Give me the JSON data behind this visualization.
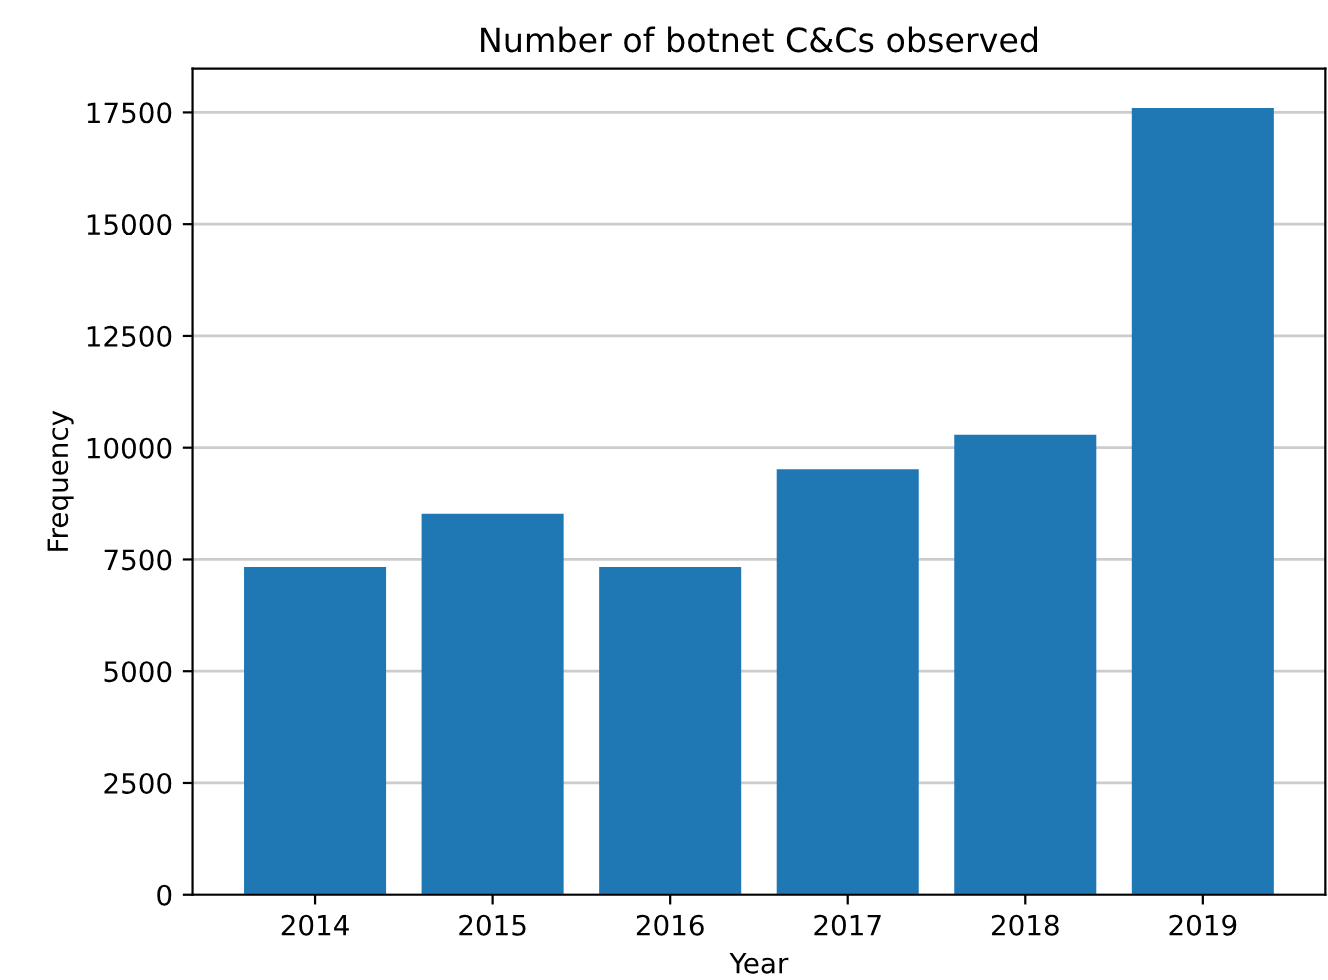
{
  "chart_data": {
    "type": "bar",
    "title": "Number of botnet C&Cs observed",
    "xlabel": "Year",
    "ylabel": "Frequency",
    "categories": [
      "2014",
      "2015",
      "2016",
      "2017",
      "2018",
      "2019"
    ],
    "values": [
      7330,
      8520,
      7330,
      9520,
      10290,
      17600
    ],
    "color": "#1f77b4",
    "ylim": [
      0,
      18480
    ],
    "yticks": [
      0,
      2500,
      5000,
      7500,
      10000,
      12500,
      15000,
      17500
    ],
    "grid": "y"
  }
}
